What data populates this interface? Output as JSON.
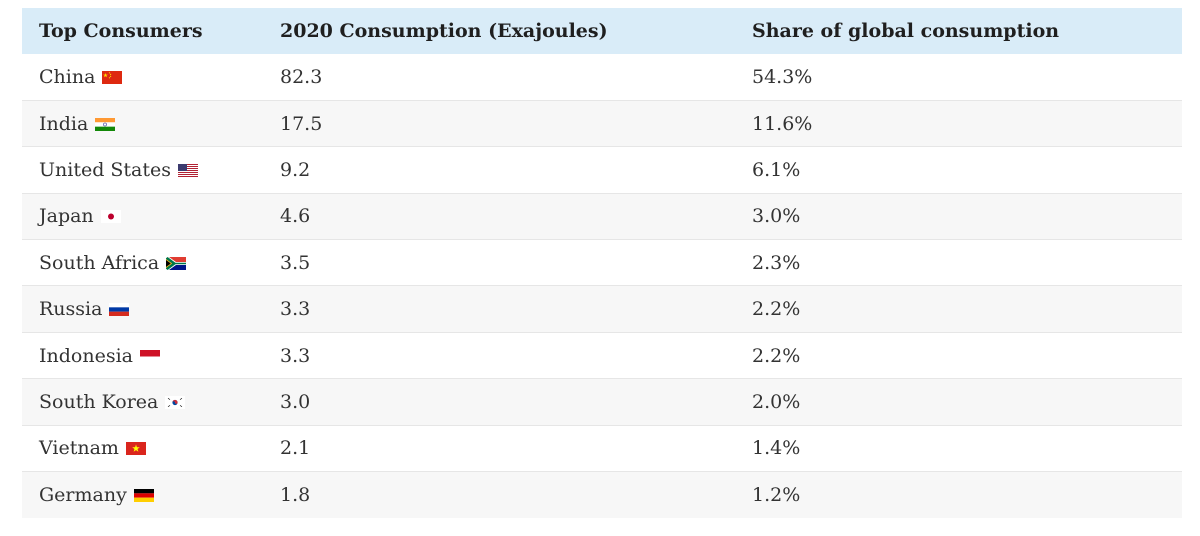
{
  "chart_data": {
    "type": "table",
    "columns": [
      "Top Consumers",
      "2020 Consumption (Exajoules)",
      "Share of global consumption"
    ],
    "rows": [
      {
        "country": "China",
        "flag": "china-flag-icon",
        "consumption": "82.3",
        "share": "54.3%"
      },
      {
        "country": "India",
        "flag": "india-flag-icon",
        "consumption": "17.5",
        "share": "11.6%"
      },
      {
        "country": "United States",
        "flag": "united-states-flag-icon",
        "consumption": "9.2",
        "share": "6.1%"
      },
      {
        "country": "Japan",
        "flag": "japan-flag-icon",
        "consumption": "4.6",
        "share": "3.0%"
      },
      {
        "country": "South Africa",
        "flag": "south-africa-flag-icon",
        "consumption": "3.5",
        "share": "2.3%"
      },
      {
        "country": "Russia",
        "flag": "russia-flag-icon",
        "consumption": "3.3",
        "share": "2.2%"
      },
      {
        "country": "Indonesia",
        "flag": "indonesia-flag-icon",
        "consumption": "3.3",
        "share": "2.2%"
      },
      {
        "country": "South Korea",
        "flag": "south-korea-flag-icon",
        "consumption": "3.0",
        "share": "2.0%"
      },
      {
        "country": "Vietnam",
        "flag": "vietnam-flag-icon",
        "consumption": "2.1",
        "share": "1.4%"
      },
      {
        "country": "Germany",
        "flag": "germany-flag-icon",
        "consumption": "1.8",
        "share": "1.2%"
      }
    ],
    "colors": {
      "header_background": "#d9ecf8",
      "alt_row_background": "#f7f7f7"
    }
  }
}
